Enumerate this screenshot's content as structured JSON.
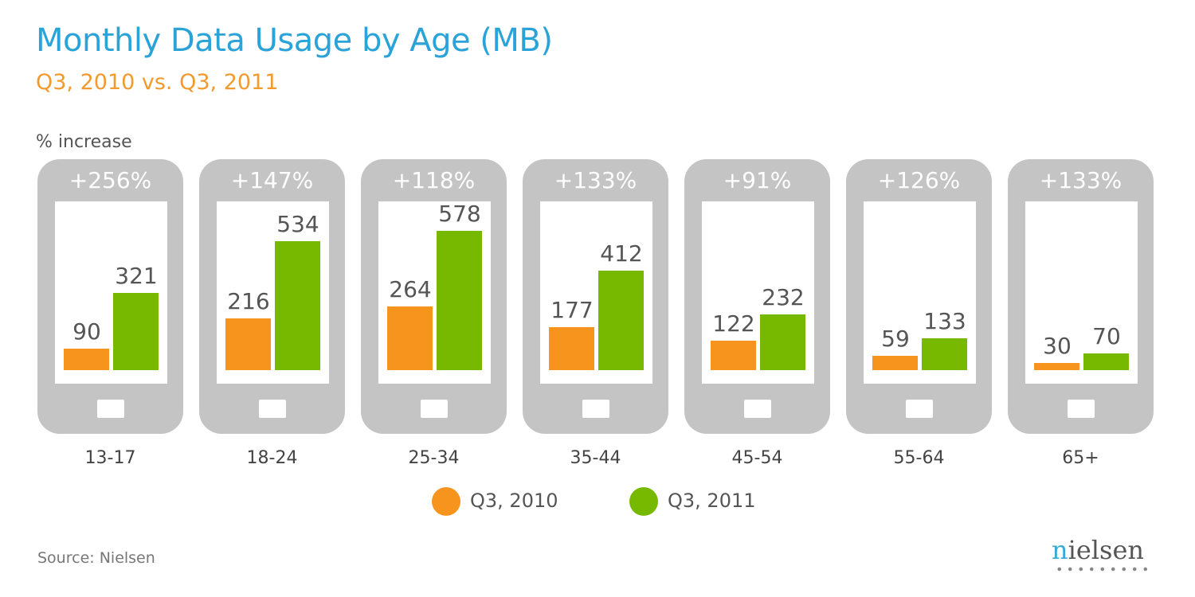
{
  "chart_data": {
    "type": "bar",
    "title": "Monthly Data Usage by Age (MB)",
    "subtitle": "Q3, 2010 vs. Q3, 2011",
    "pct_label": "% increase",
    "categories": [
      "13-17",
      "18-24",
      "25-34",
      "35-44",
      "45-54",
      "55-64",
      "65+"
    ],
    "series": [
      {
        "name": "Q3, 2010",
        "color": "#f7941d",
        "values": [
          90,
          216,
          264,
          177,
          122,
          59,
          30
        ]
      },
      {
        "name": "Q3, 2011",
        "color": "#77b800",
        "values": [
          321,
          534,
          578,
          412,
          232,
          133,
          70
        ]
      }
    ],
    "pct_increase": [
      "+256%",
      "+147%",
      "+118%",
      "+133%",
      "+91%",
      "+126%",
      "+133%"
    ],
    "ylim": [
      0,
      600
    ],
    "legend": "bottom-center",
    "grid": false
  },
  "source": "Source: Nielsen",
  "logo": "nielsen"
}
